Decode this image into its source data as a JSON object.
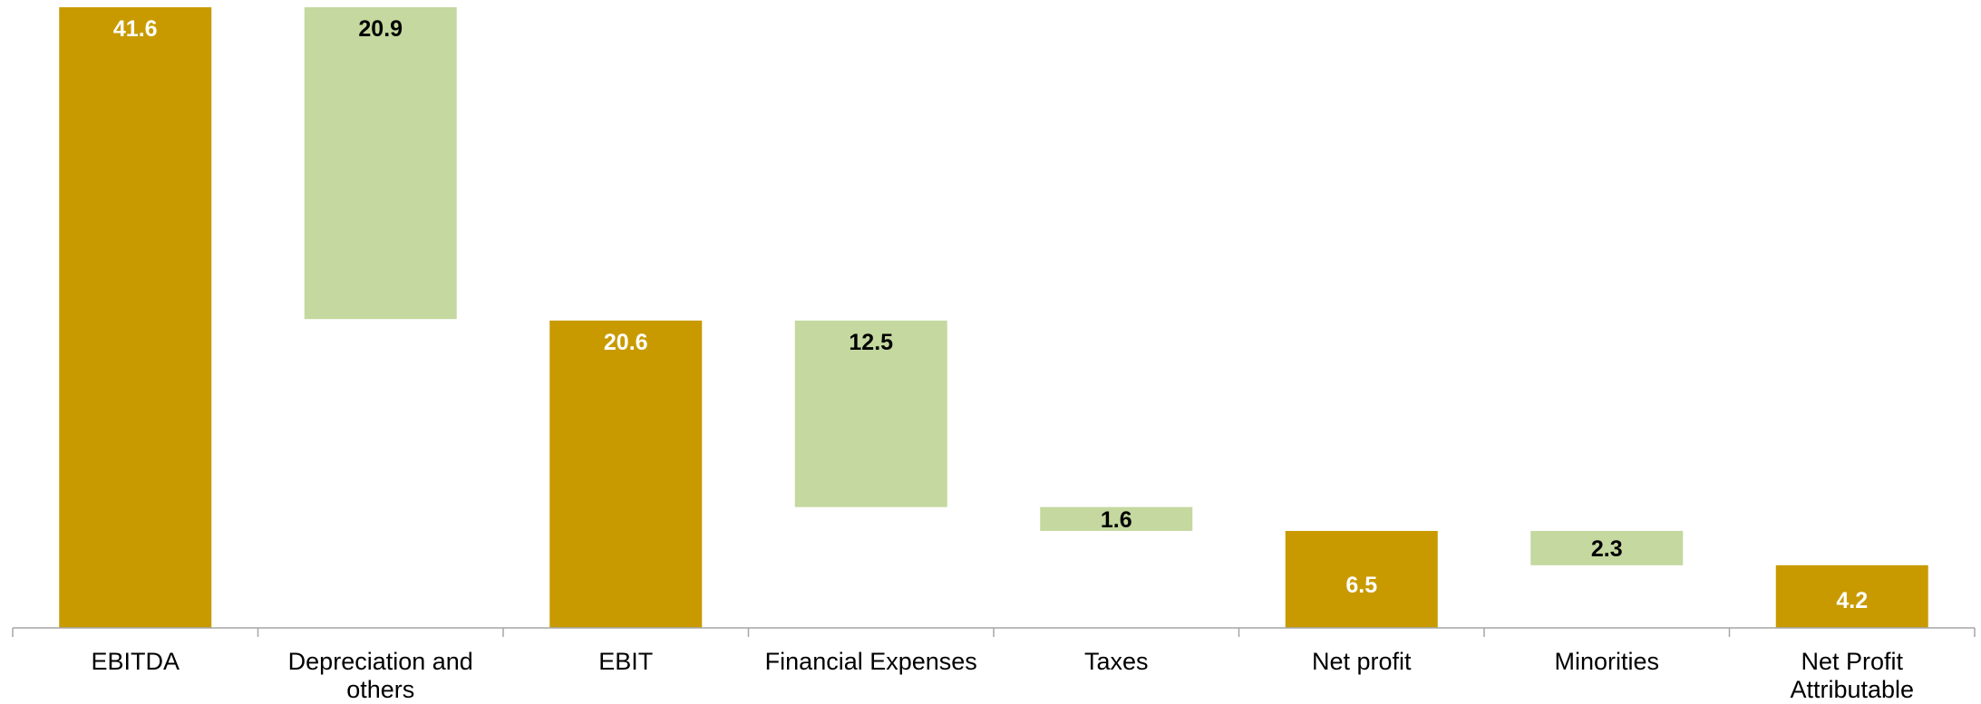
{
  "chart_data": {
    "type": "bar",
    "subtype": "waterfall",
    "categories": [
      [
        "EBITDA"
      ],
      [
        "Depreciation and",
        "others"
      ],
      [
        "EBIT"
      ],
      [
        "Financial Expenses"
      ],
      [
        "Taxes"
      ],
      [
        "Net profit"
      ],
      [
        "Minorities"
      ],
      [
        "Net Profit",
        "Attributable"
      ]
    ],
    "bars": [
      {
        "kind": "total",
        "base": 0,
        "top": 41.6,
        "label": "41.6"
      },
      {
        "kind": "decrease",
        "base": 20.7,
        "top": 41.6,
        "label": "20.9"
      },
      {
        "kind": "total",
        "base": 0,
        "top": 20.6,
        "label": "20.6"
      },
      {
        "kind": "decrease",
        "base": 8.1,
        "top": 20.6,
        "label": "12.5"
      },
      {
        "kind": "decrease",
        "base": 6.5,
        "top": 8.1,
        "label": "1.6"
      },
      {
        "kind": "total",
        "base": 0,
        "top": 6.5,
        "label": "6.5"
      },
      {
        "kind": "decrease",
        "base": 4.2,
        "top": 6.5,
        "label": "2.3"
      },
      {
        "kind": "total",
        "base": 0,
        "top": 4.2,
        "label": "4.2"
      }
    ],
    "colors": {
      "total": "#C89A00",
      "decrease": "#C4D89F",
      "axis": "#A6A6A6"
    },
    "label_colors": {
      "inside_total": "#FFFFFF",
      "other": "#000000"
    },
    "ylim": [
      0,
      41.6
    ],
    "grid": false,
    "legend": "none",
    "title": "",
    "xlabel": "",
    "ylabel": ""
  }
}
